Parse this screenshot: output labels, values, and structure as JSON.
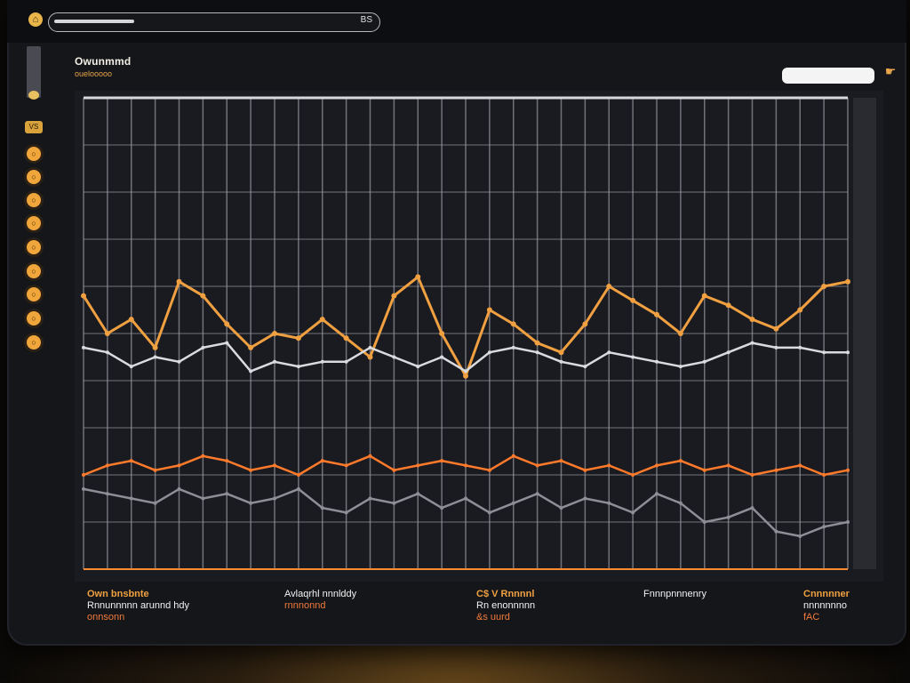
{
  "window": {
    "progress_label": "BS",
    "progress_fraction": 0.25
  },
  "sidebar": {
    "badge": "VS",
    "icons": [
      "circle-icon",
      "circle-icon",
      "circle-icon",
      "circle-icon",
      "circle-icon",
      "circle-icon",
      "circle-icon",
      "circle-icon",
      "circle-icon"
    ]
  },
  "header": {
    "title": "Owunmmd",
    "subtitle": "ouelooooo",
    "search_placeholder": ""
  },
  "colors": {
    "background": "#15161a",
    "accent": "#f0a040",
    "highlight": "#ff8a30",
    "grid": "#8e8f96"
  },
  "footer": {
    "col1": {
      "head": "Own bnsbnte",
      "body": "Rnnunnnnn arunnd hdy",
      "note": "onnsonn"
    },
    "col2": {
      "head": "",
      "body": "Avlaqrhl nnnlddy",
      "note": "rnnnonnd"
    },
    "col3": {
      "head": "C$ V Rnnnnl",
      "body": "Rn enonnnnn",
      "note": "&s uurd"
    },
    "col4": {
      "head": "",
      "body": "Fnnnpnnnenry",
      "note": ""
    },
    "col5": {
      "head": "Cnnnnner",
      "body": "nnnnnnno",
      "note": "fAC"
    }
  },
  "chart_data": {
    "type": "line",
    "title": "",
    "xlabel": "",
    "ylabel": "",
    "grid": true,
    "x_count": 33,
    "ylim": [
      0,
      100
    ],
    "series": [
      {
        "color": "#f0a040",
        "values": [
          58,
          50,
          53,
          47,
          61,
          58,
          52,
          47,
          50,
          49,
          53,
          49,
          45,
          58,
          62,
          50,
          41,
          55,
          52,
          48,
          46,
          52,
          60,
          57,
          54,
          50,
          58,
          56,
          53,
          51,
          55,
          60,
          61
        ]
      },
      {
        "color": "#d9dbe0",
        "values": [
          47,
          46,
          43,
          45,
          44,
          47,
          48,
          42,
          44,
          43,
          44,
          44,
          47,
          45,
          43,
          45,
          42,
          46,
          47,
          46,
          44,
          43,
          46,
          45,
          44,
          43,
          44,
          46,
          48,
          47,
          47,
          46,
          46
        ]
      },
      {
        "color": "#ff7a2a",
        "values": [
          20,
          22,
          23,
          21,
          22,
          24,
          23,
          21,
          22,
          20,
          23,
          22,
          24,
          21,
          22,
          23,
          22,
          21,
          24,
          22,
          23,
          21,
          22,
          20,
          22,
          23,
          21,
          22,
          20,
          21,
          22,
          20,
          21
        ]
      },
      {
        "color": "#8e8f96",
        "values": [
          17,
          16,
          15,
          14,
          17,
          15,
          16,
          14,
          15,
          17,
          13,
          12,
          15,
          14,
          16,
          13,
          15,
          12,
          14,
          16,
          13,
          15,
          14,
          12,
          16,
          14,
          10,
          11,
          13,
          8,
          7,
          9,
          10
        ]
      }
    ]
  }
}
